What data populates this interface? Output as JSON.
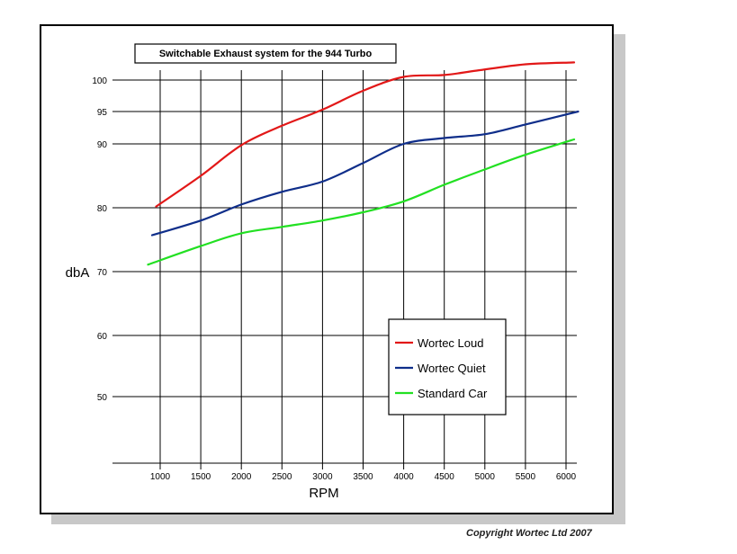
{
  "chart_data": {
    "type": "line",
    "title": "Switchable Exhaust system for the 944 Turbo",
    "xlabel": "RPM",
    "ylabel": "dbA",
    "x_ticks": [
      "1000",
      "1500",
      "2000",
      "2500",
      "3000",
      "3500",
      "4000",
      "4500",
      "5000",
      "5500",
      "6000"
    ],
    "y_ticks": [
      "100",
      "95",
      "90",
      "80",
      "70",
      "60",
      "50"
    ],
    "grid": true,
    "legend_position": "lower-right",
    "series": [
      {
        "name": "Wortec Loud",
        "color": "#e21818",
        "x": [
          950,
          1500,
          2000,
          2500,
          3000,
          3500,
          4000,
          4500,
          4900,
          5500,
          6100
        ],
        "y": [
          80.2,
          85,
          89.8,
          92.8,
          95.3,
          98.3,
          100.5,
          100.8,
          101.5,
          102.5,
          102.8
        ]
      },
      {
        "name": "Wortec Quiet",
        "color": "#0f2e8a",
        "x": [
          900,
          1500,
          2000,
          2500,
          3000,
          3500,
          4000,
          4500,
          5000,
          5500,
          6150
        ],
        "y": [
          75.7,
          78,
          80.5,
          82.5,
          84.1,
          87,
          90,
          90.9,
          91.5,
          93,
          95
        ]
      },
      {
        "name": "Standard Car",
        "color": "#22e022",
        "x": [
          850,
          1500,
          2000,
          2500,
          3000,
          3500,
          4000,
          4500,
          5000,
          5500,
          6100
        ],
        "y": [
          71.1,
          74,
          76,
          77,
          78,
          79.3,
          81,
          83.6,
          86,
          88.3,
          90.7
        ]
      }
    ]
  },
  "copyright": "Copyright Wortec Ltd 2007"
}
